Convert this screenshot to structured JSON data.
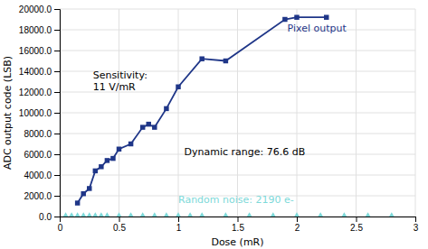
{
  "chart_data": {
    "type": "line",
    "xlabel": "Dose (mR)",
    "ylabel": "ADC output code (LSB)",
    "xlim": [
      0,
      3
    ],
    "ylim": [
      0.0,
      20000.0
    ],
    "xticks": [
      0,
      0.5,
      1,
      1.5,
      2,
      2.5,
      3
    ],
    "yticks": [
      {
        "value": 0,
        "label": "0.0"
      },
      {
        "value": 2000,
        "label": "2000.0"
      },
      {
        "value": 4000,
        "label": "4000.0"
      },
      {
        "value": 6000,
        "label": "6000.0"
      },
      {
        "value": 8000,
        "label": "8000.0"
      },
      {
        "value": 10000,
        "label": "10000.0"
      },
      {
        "value": 12000,
        "label": "12000.0"
      },
      {
        "value": 14000,
        "label": "14000.0"
      },
      {
        "value": 16000,
        "label": "16000.0"
      },
      {
        "value": 18000,
        "label": "18000.0"
      },
      {
        "value": 20000,
        "label": "20000.0"
      }
    ],
    "grid": true,
    "series": [
      {
        "type": "line",
        "color": "#1F3688",
        "marker": "square",
        "line_style": "solid",
        "x": [
          0.15,
          0.2,
          0.25,
          0.3,
          0.35,
          0.4,
          0.45,
          0.5,
          0.6,
          0.7,
          0.75,
          0.8,
          0.9,
          1.0,
          1.2,
          1.4,
          1.9,
          2.0,
          2.25
        ],
        "values": [
          1300,
          2200,
          2700,
          4400,
          4800,
          5400,
          5600,
          6500,
          7000,
          8600,
          8900,
          8600,
          10400,
          12500,
          15200,
          15000,
          19000,
          19200,
          19200
        ]
      },
      {
        "type": "scatter",
        "color": "#7DD9D9",
        "marker": "diamond",
        "x": [
          0.05,
          0.1,
          0.15,
          0.2,
          0.25,
          0.3,
          0.35,
          0.4,
          0.5,
          0.6,
          0.7,
          0.8,
          0.9,
          1.0,
          1.1,
          1.2,
          1.4,
          1.6,
          1.8,
          2.0,
          2.2,
          2.4,
          2.6,
          2.8
        ],
        "values": [
          0,
          0,
          0,
          0,
          0,
          0,
          0,
          0,
          0,
          0,
          0,
          0,
          0,
          0,
          0,
          0,
          0,
          0,
          0,
          0,
          0,
          0,
          0,
          0
        ]
      }
    ],
    "annotations": [
      {
        "text": "Sensitivity:\n11 V/mR",
        "x": 0.28,
        "y": 14200,
        "color": "#000000"
      },
      {
        "text": "Dynamic range: 76.6 dB",
        "x": 1.05,
        "y": 6800,
        "color": "#000000"
      },
      {
        "text": "Random noise: 2190 e-",
        "x": 1.0,
        "y": 2200,
        "color": "#7DD9D9"
      },
      {
        "text": "Pixel output",
        "x": 1.92,
        "y": 18700,
        "color": "#1F3688"
      }
    ]
  }
}
